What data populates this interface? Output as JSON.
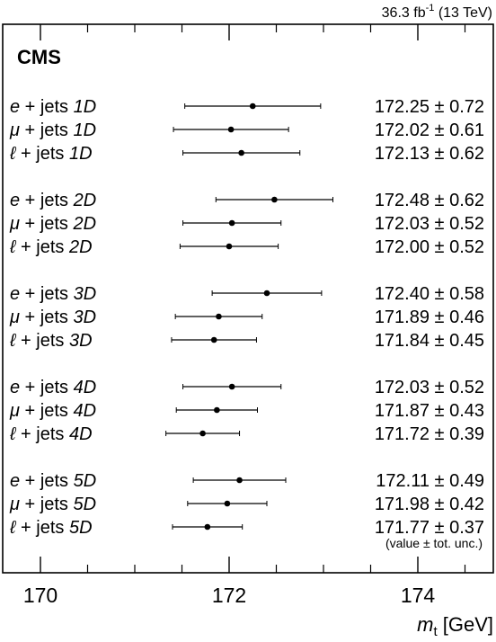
{
  "chart_data": {
    "type": "scatter",
    "title": "",
    "experiment_label": "CMS",
    "luminosity": {
      "value": "36.3 fb",
      "sup": "-1",
      "energy": " (13 TeV)"
    },
    "xlabel": {
      "symbol": "m",
      "subscript": "t",
      "unit": " [GeV]"
    },
    "xlim": [
      169.6,
      174.8
    ],
    "xticks_major": [
      170,
      172,
      174
    ],
    "xticks_minor": [
      170.5,
      171,
      171.5,
      172.5,
      173,
      173.5,
      174.5
    ],
    "note": "(value ± tot. unc.)",
    "groups": [
      {
        "dim": "1D",
        "entries": [
          {
            "ch": "e",
            "label": "e + jets 1D",
            "value": 172.25,
            "unc": 0.72,
            "text": "172.25 ± 0.72"
          },
          {
            "ch": "mu",
            "label": "μ + jets 1D",
            "value": 172.02,
            "unc": 0.61,
            "text": "172.02 ± 0.61"
          },
          {
            "ch": "l",
            "label": "ℓ + jets 1D",
            "value": 172.13,
            "unc": 0.62,
            "text": "172.13 ± 0.62"
          }
        ]
      },
      {
        "dim": "2D",
        "entries": [
          {
            "ch": "e",
            "label": "e + jets 2D",
            "value": 172.48,
            "unc": 0.62,
            "text": "172.48 ± 0.62"
          },
          {
            "ch": "mu",
            "label": "μ + jets 2D",
            "value": 172.03,
            "unc": 0.52,
            "text": "172.03 ± 0.52"
          },
          {
            "ch": "l",
            "label": "ℓ + jets 2D",
            "value": 172.0,
            "unc": 0.52,
            "text": "172.00 ± 0.52"
          }
        ]
      },
      {
        "dim": "3D",
        "entries": [
          {
            "ch": "e",
            "label": "e + jets 3D",
            "value": 172.4,
            "unc": 0.58,
            "text": "172.40 ± 0.58"
          },
          {
            "ch": "mu",
            "label": "μ + jets 3D",
            "value": 171.89,
            "unc": 0.46,
            "text": "171.89 ± 0.46"
          },
          {
            "ch": "l",
            "label": "ℓ + jets 3D",
            "value": 171.84,
            "unc": 0.45,
            "text": "171.84 ± 0.45"
          }
        ]
      },
      {
        "dim": "4D",
        "entries": [
          {
            "ch": "e",
            "label": "e + jets 4D",
            "value": 172.03,
            "unc": 0.52,
            "text": "172.03 ± 0.52"
          },
          {
            "ch": "mu",
            "label": "μ + jets 4D",
            "value": 171.87,
            "unc": 0.43,
            "text": "171.87 ± 0.43"
          },
          {
            "ch": "l",
            "label": "ℓ + jets 4D",
            "value": 171.72,
            "unc": 0.39,
            "text": "171.72 ± 0.39"
          }
        ]
      },
      {
        "dim": "5D",
        "entries": [
          {
            "ch": "e",
            "label": "e + jets 5D",
            "value": 172.11,
            "unc": 0.49,
            "text": "172.11 ± 0.49"
          },
          {
            "ch": "mu",
            "label": "μ + jets 5D",
            "value": 171.98,
            "unc": 0.42,
            "text": "171.98 ± 0.42"
          },
          {
            "ch": "l",
            "label": "ℓ + jets 5D",
            "value": 171.77,
            "unc": 0.37,
            "text": "171.77 ± 0.37"
          }
        ]
      }
    ]
  }
}
